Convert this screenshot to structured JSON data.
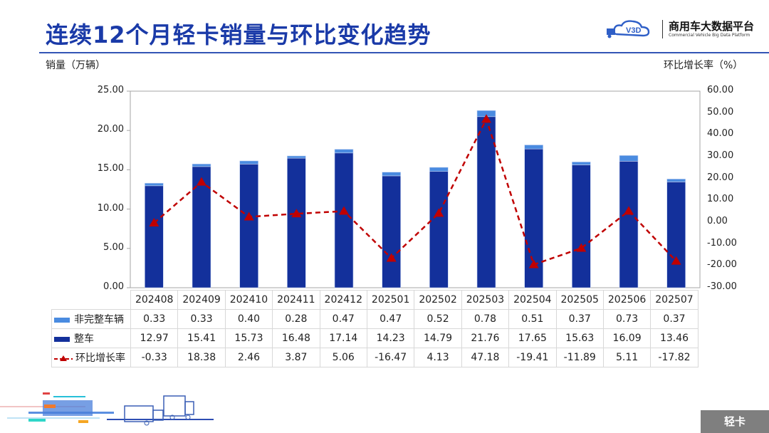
{
  "header": {
    "title": "连续12个月轻卡销量与环比变化趋势",
    "logo": {
      "mark_text": "V3D",
      "name": "商用车大数据平台",
      "subtitle": "Commercial Vehicle Big Data Platform"
    }
  },
  "axes": {
    "left_title": "销量（万辆）",
    "right_title": "环比增长率（%）",
    "left_ticks": [
      "25.00",
      "20.00",
      "15.00",
      "10.00",
      "5.00",
      "0.00"
    ],
    "right_ticks": [
      "60.00",
      "50.00",
      "40.00",
      "30.00",
      "20.00",
      "10.00",
      "0.00",
      "-10.00",
      "-20.00",
      "-30.00"
    ]
  },
  "colors": {
    "title": "#1a3aa8",
    "bar_complete": "#13309b",
    "bar_incomplete": "#4a8be0",
    "line": "#c00000",
    "badge_bg": "#7f7f7f"
  },
  "table": {
    "rows": [
      {
        "label": "非完整车辆",
        "legend": "bar-light"
      },
      {
        "label": "整车",
        "legend": "bar-dark"
      },
      {
        "label": "环比增长率",
        "legend": "dashed-triangle"
      }
    ]
  },
  "footer": {
    "badge": "轻卡"
  },
  "chart_data": {
    "type": "bar",
    "title": "连续12个月轻卡销量与环比变化趋势",
    "xlabel": "",
    "ylabel": "销量（万辆）",
    "y2label": "环比增长率（%）",
    "ylim": [
      0,
      25
    ],
    "y2lim": [
      -30,
      60
    ],
    "grid": false,
    "legend_position": "data-table",
    "categories": [
      "202408",
      "202409",
      "202410",
      "202411",
      "202412",
      "202501",
      "202502",
      "202503",
      "202504",
      "202505",
      "202506",
      "202507"
    ],
    "series": [
      {
        "name": "整车",
        "type": "bar",
        "stack": "sales",
        "axis": "left",
        "values": [
          12.97,
          15.41,
          15.73,
          16.48,
          17.14,
          14.23,
          14.79,
          21.76,
          17.65,
          15.63,
          16.09,
          13.46
        ]
      },
      {
        "name": "非完整车辆",
        "type": "bar",
        "stack": "sales",
        "axis": "left",
        "values": [
          0.33,
          0.33,
          0.4,
          0.28,
          0.47,
          0.47,
          0.52,
          0.78,
          0.51,
          0.37,
          0.73,
          0.37
        ]
      },
      {
        "name": "环比增长率",
        "type": "line",
        "axis": "right",
        "style": "dashed",
        "marker": "triangle",
        "values": [
          -0.33,
          18.38,
          2.46,
          3.87,
          5.06,
          -16.47,
          4.13,
          47.18,
          -19.41,
          -11.89,
          5.11,
          -17.82
        ]
      }
    ]
  }
}
